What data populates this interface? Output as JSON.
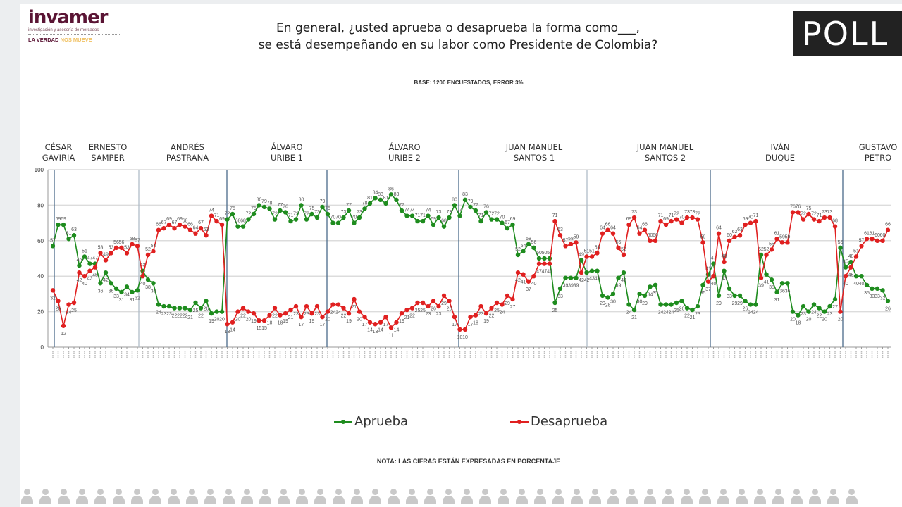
{
  "logo": {
    "word": "invamer",
    "sub": "investigación y asesoría de mercados",
    "tag_a": "LA VERDAD",
    "tag_b": "NOS MUEVE"
  },
  "brand": {
    "poll": "POLL"
  },
  "title": {
    "line1": "En general, ¿usted aprueba o desaprueba la forma como___,",
    "line2": "se está desempeñando en su labor como Presidente de Colombia?"
  },
  "base": "BASE: 1200 ENCUESTADOS, ERROR 3%",
  "nota": "NOTA: LAS CIFRAS ESTÁN EXPRESADAS EN PORCENTAJE",
  "presidents": [
    {
      "l1": "CÉSAR",
      "l2": "GAVIRIA"
    },
    {
      "l1": "ERNESTO",
      "l2": "SAMPER"
    },
    {
      "l1": "ANDRÉS",
      "l2": "PASTRANA"
    },
    {
      "l1": "ÁLVARO",
      "l2": "URIBE 1"
    },
    {
      "l1": "ÁLVARO",
      "l2": "URIBE 2"
    },
    {
      "l1": "JUAN MANUEL",
      "l2": "SANTOS 1"
    },
    {
      "l1": "JUAN MANUEL",
      "l2": "SANTOS 2"
    },
    {
      "l1": "IVÁN",
      "l2": "DUQUE"
    },
    {
      "l1": "GUSTAVO",
      "l2": "PETRO"
    }
  ],
  "chart_data": {
    "type": "line",
    "title": "En general, ¿usted aprueba o desaprueba la forma como___, se está desempeñando en su labor como Presidente de Colombia?",
    "ylim": [
      0,
      100
    ],
    "yticks": [
      0,
      20,
      40,
      60,
      80,
      100
    ],
    "grid": true,
    "legend": "bottom",
    "series": [
      {
        "name": "Aprueba",
        "color": "#1e8c1e",
        "values": [
          57,
          69,
          69,
          61,
          63,
          46,
          51,
          47,
          47,
          36,
          42,
          36,
          33,
          31,
          34,
          31,
          32,
          43,
          38,
          36,
          24,
          23,
          23,
          22,
          22,
          22,
          21,
          25,
          22,
          26,
          19,
          20,
          20,
          72,
          75,
          68,
          68,
          72,
          75,
          80,
          79,
          78,
          72,
          77,
          76,
          71,
          72,
          80,
          72,
          75,
          73,
          79,
          75,
          70,
          70,
          73,
          77,
          70,
          73,
          78,
          81,
          84,
          83,
          81,
          86,
          83,
          77,
          74,
          74,
          71,
          71,
          74,
          69,
          73,
          68,
          73,
          80,
          74,
          83,
          79,
          77,
          71,
          76,
          72,
          72,
          70,
          67,
          69,
          52,
          54,
          58,
          56,
          50,
          50,
          50,
          25,
          33,
          39,
          39,
          39,
          49,
          42,
          43,
          43,
          29,
          28,
          30,
          39,
          42,
          24,
          21,
          30,
          29,
          34,
          35,
          24,
          24,
          24,
          25,
          26,
          22,
          21,
          23,
          35,
          41,
          47,
          29,
          43,
          33,
          29,
          29,
          26,
          24,
          24,
          52,
          41,
          38,
          31,
          36,
          36,
          20,
          18,
          23,
          20,
          24,
          22,
          20,
          23,
          27,
          56,
          45,
          48,
          40,
          40,
          35,
          33,
          33,
          32,
          26
        ]
      },
      {
        "name": "Desaprueba",
        "color": "#e02020",
        "values": [
          32,
          26,
          12,
          24,
          25,
          42,
          40,
          43,
          45,
          53,
          49,
          53,
          56,
          56,
          53,
          58,
          57,
          40,
          52,
          54,
          66,
          67,
          69,
          67,
          69,
          68,
          66,
          64,
          67,
          63,
          74,
          71,
          69,
          13,
          14,
          20,
          22,
          20,
          19,
          15,
          15,
          18,
          22,
          18,
          19,
          21,
          23,
          17,
          23,
          19,
          23,
          17,
          20,
          24,
          24,
          22,
          19,
          27,
          20,
          17,
          14,
          13,
          14,
          17,
          11,
          14,
          19,
          21,
          22,
          25,
          25,
          23,
          26,
          23,
          29,
          26,
          17,
          10,
          10,
          17,
          18,
          23,
          19,
          22,
          25,
          24,
          29,
          27,
          42,
          41,
          37,
          40,
          47,
          47,
          47,
          71,
          63,
          57,
          58,
          59,
          42,
          51,
          51,
          53,
          64,
          66,
          64,
          56,
          52,
          69,
          73,
          64,
          66,
          60,
          60,
          71,
          69,
          71,
          72,
          70,
          73,
          73,
          72,
          59,
          37,
          40,
          64,
          48,
          60,
          62,
          63,
          69,
          70,
          71,
          39,
          52,
          55,
          61,
          59,
          59,
          76,
          76,
          72,
          75,
          72,
          71,
          73,
          73,
          68,
          20,
          40,
          45,
          51,
          57,
          61,
          61,
          60,
          60,
          66
        ]
      }
    ]
  }
}
